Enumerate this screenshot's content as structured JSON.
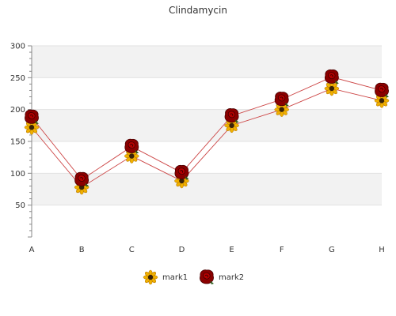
{
  "chart_data": {
    "type": "line",
    "title": "Clindamycin",
    "categories": [
      "A",
      "B",
      "C",
      "D",
      "E",
      "F",
      "G",
      "H"
    ],
    "ylim": [
      0,
      300
    ],
    "yticks": [
      50,
      100,
      150,
      200,
      250,
      300
    ],
    "grid": "horizontal bands",
    "legend_position": "bottom",
    "series": [
      {
        "name": "mark1",
        "values": [
          172,
          78,
          127,
          88,
          175,
          200,
          233,
          214
        ],
        "color": "#cc4444",
        "marker": "sunflower-icon"
      },
      {
        "name": "mark2",
        "values": [
          188,
          90,
          142,
          101,
          190,
          216,
          251,
          230
        ],
        "color": "#cc4444",
        "marker": "rose-icon"
      }
    ]
  }
}
